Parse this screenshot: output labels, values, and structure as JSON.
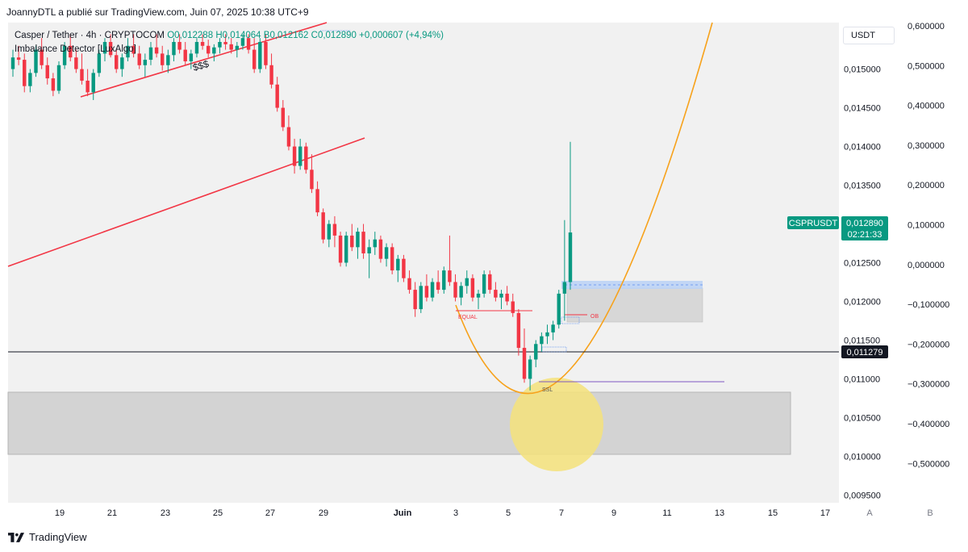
{
  "header": {
    "publisher_text": "JoannyDTL a publié sur TradingView.com, Juin 07, 2025 10:38 UTC+9"
  },
  "legend": {
    "symbol": "Casper / Tether · 4h · CRYPTOCOM",
    "open": "O0,012288",
    "high": "H0,014064",
    "low": "B0,012162",
    "close": "C0,012890",
    "change": "+0,000607 (+4,94%)",
    "indicator": "Imbalance Detector [LuxAlgo]"
  },
  "currency_button": "USDT",
  "footer": {
    "brand": "TradingView"
  },
  "colors": {
    "up": "#089981",
    "down": "#f23645",
    "trendline": "#f23645",
    "curve": "#f7a21b",
    "highlight_circle": "#f5e27a",
    "zone": "#c8c8c8",
    "ob_zone": "#d4d4d4",
    "ob_zone_top": "#bcd3f5",
    "ssl_line": "#7e57c2",
    "crosshair": "#131722"
  },
  "chart_data": {
    "type": "candlestick",
    "symbol": "CSPRUSDT",
    "timeframe": "4h",
    "x_axis": {
      "tick_labels": [
        "19",
        "21",
        "23",
        "25",
        "27",
        "29",
        "Juin",
        "3",
        "5",
        "7",
        "9",
        "11",
        "13",
        "15",
        "17"
      ],
      "pane_labels": [
        "A",
        "B"
      ]
    },
    "price_axis": {
      "ticks": [
        "0,015000",
        "0,014500",
        "0,014000",
        "0,013500",
        "0,013000",
        "0,012500",
        "0,012000",
        "0,011500",
        "0,011000",
        "0,010500",
        "0,010000",
        "0,009500"
      ],
      "range": [
        0.0094,
        0.0156
      ]
    },
    "secondary_axis": {
      "ticks": [
        "0,600000",
        "0,500000",
        "0,400000",
        "0,300000",
        "0,200000",
        "0,100000",
        "0,000000",
        "−0,100000",
        "−0,200000",
        "−0,300000",
        "−0,400000",
        "−0,500000"
      ]
    },
    "last_price": {
      "label": "CSPRUSDT",
      "value": "0,012890",
      "countdown": "02:21:33"
    },
    "crosshair_price": "0,011279",
    "annotations": [
      "$$$",
      "EQUAL",
      "OB",
      "SSL"
    ],
    "candles": [
      [
        0.015,
        0.01525,
        0.0149,
        0.01515
      ],
      [
        0.01515,
        0.0153,
        0.01505,
        0.01512
      ],
      [
        0.01512,
        0.0152,
        0.0147,
        0.01478
      ],
      [
        0.01478,
        0.015,
        0.0147,
        0.01495
      ],
      [
        0.01495,
        0.0153,
        0.0149,
        0.01525
      ],
      [
        0.01525,
        0.0154,
        0.015,
        0.01505
      ],
      [
        0.01505,
        0.01515,
        0.0148,
        0.01488
      ],
      [
        0.01488,
        0.01495,
        0.01465,
        0.01472
      ],
      [
        0.01472,
        0.0151,
        0.01468,
        0.01505
      ],
      [
        0.01505,
        0.01535,
        0.015,
        0.0153
      ],
      [
        0.0153,
        0.01545,
        0.0151,
        0.01515
      ],
      [
        0.01515,
        0.01525,
        0.01495,
        0.015
      ],
      [
        0.015,
        0.0152,
        0.0148,
        0.01485
      ],
      [
        0.01485,
        0.015,
        0.01465,
        0.0147
      ],
      [
        0.0147,
        0.015,
        0.0146,
        0.01495
      ],
      [
        0.01495,
        0.01525,
        0.0149,
        0.0152
      ],
      [
        0.0152,
        0.0154,
        0.0151,
        0.01535
      ],
      [
        0.01535,
        0.01545,
        0.01515,
        0.01518
      ],
      [
        0.01518,
        0.01525,
        0.01495,
        0.015
      ],
      [
        0.015,
        0.0152,
        0.0149,
        0.01515
      ],
      [
        0.01515,
        0.0154,
        0.0151,
        0.0153
      ],
      [
        0.0153,
        0.01545,
        0.01515,
        0.0152
      ],
      [
        0.0152,
        0.0153,
        0.015,
        0.01505
      ],
      [
        0.01505,
        0.0152,
        0.0149,
        0.01512
      ],
      [
        0.01512,
        0.01535,
        0.01505,
        0.01528
      ],
      [
        0.01528,
        0.01545,
        0.01515,
        0.0152
      ],
      [
        0.0152,
        0.0153,
        0.01498,
        0.01505
      ],
      [
        0.01505,
        0.01525,
        0.01495,
        0.01518
      ],
      [
        0.01518,
        0.0154,
        0.0151,
        0.01535
      ],
      [
        0.01535,
        0.01545,
        0.0152,
        0.01525
      ],
      [
        0.01525,
        0.01535,
        0.01505,
        0.0151
      ],
      [
        0.0151,
        0.01525,
        0.015,
        0.0152
      ],
      [
        0.0152,
        0.0154,
        0.01515,
        0.01535
      ],
      [
        0.01535,
        0.01545,
        0.01525,
        0.0153
      ],
      [
        0.0153,
        0.01538,
        0.01515,
        0.0152
      ],
      [
        0.0152,
        0.01532,
        0.0151,
        0.01528
      ],
      [
        0.01528,
        0.0154,
        0.0152,
        0.01535
      ],
      [
        0.01535,
        0.01545,
        0.01525,
        0.01532
      ],
      [
        0.01532,
        0.0154,
        0.0152,
        0.01525
      ],
      [
        0.01525,
        0.01535,
        0.01515,
        0.0153
      ],
      [
        0.0153,
        0.01545,
        0.01525,
        0.0154
      ],
      [
        0.0154,
        0.01545,
        0.0152,
        0.01525
      ],
      [
        0.01525,
        0.0154,
        0.01495,
        0.015
      ],
      [
        0.015,
        0.0154,
        0.01495,
        0.01535
      ],
      [
        0.01535,
        0.01545,
        0.015,
        0.01505
      ],
      [
        0.01505,
        0.0152,
        0.01475,
        0.0148
      ],
      [
        0.0148,
        0.0149,
        0.01445,
        0.0145
      ],
      [
        0.0145,
        0.0146,
        0.0142,
        0.01425
      ],
      [
        0.01425,
        0.0144,
        0.01395,
        0.014
      ],
      [
        0.014,
        0.0141,
        0.01365,
        0.01375
      ],
      [
        0.01375,
        0.0141,
        0.0137,
        0.014
      ],
      [
        0.014,
        0.01405,
        0.01365,
        0.0137
      ],
      [
        0.0137,
        0.0139,
        0.0134,
        0.01345
      ],
      [
        0.01345,
        0.01355,
        0.0131,
        0.01315
      ],
      [
        0.01315,
        0.0132,
        0.01275,
        0.0128
      ],
      [
        0.0128,
        0.01305,
        0.0127,
        0.013
      ],
      [
        0.013,
        0.0131,
        0.0127,
        0.01285
      ],
      [
        0.01285,
        0.0129,
        0.01245,
        0.0125
      ],
      [
        0.0125,
        0.0129,
        0.01245,
        0.01285
      ],
      [
        0.01285,
        0.013,
        0.01265,
        0.0127
      ],
      [
        0.0127,
        0.01295,
        0.01255,
        0.0129
      ],
      [
        0.0129,
        0.013,
        0.01255,
        0.01262
      ],
      [
        0.01262,
        0.0128,
        0.0123,
        0.0127
      ],
      [
        0.0127,
        0.0129,
        0.0126,
        0.0128
      ],
      [
        0.0128,
        0.01285,
        0.0125,
        0.01255
      ],
      [
        0.01255,
        0.01275,
        0.01245,
        0.0127
      ],
      [
        0.0127,
        0.01275,
        0.01235,
        0.0124
      ],
      [
        0.0124,
        0.0126,
        0.01225,
        0.01255
      ],
      [
        0.01255,
        0.0126,
        0.01225,
        0.0123
      ],
      [
        0.0123,
        0.0124,
        0.0121,
        0.01215
      ],
      [
        0.01215,
        0.01225,
        0.0118,
        0.0119
      ],
      [
        0.0119,
        0.01225,
        0.01185,
        0.0122
      ],
      [
        0.0122,
        0.01235,
        0.012,
        0.01205
      ],
      [
        0.01205,
        0.0123,
        0.012,
        0.01225
      ],
      [
        0.01225,
        0.0124,
        0.0121,
        0.01215
      ],
      [
        0.01215,
        0.01245,
        0.0121,
        0.0124
      ],
      [
        0.0124,
        0.01285,
        0.0122,
        0.01225
      ],
      [
        0.01225,
        0.01235,
        0.012,
        0.01205
      ],
      [
        0.01205,
        0.01225,
        0.01195,
        0.0122
      ],
      [
        0.0122,
        0.0124,
        0.0121,
        0.0123
      ],
      [
        0.0123,
        0.01235,
        0.012,
        0.01205
      ],
      [
        0.01205,
        0.01215,
        0.0119,
        0.0121
      ],
      [
        0.0121,
        0.0124,
        0.01205,
        0.01235
      ],
      [
        0.01235,
        0.0124,
        0.0121,
        0.01215
      ],
      [
        0.01215,
        0.01225,
        0.012,
        0.01205
      ],
      [
        0.01205,
        0.01215,
        0.0119,
        0.0121
      ],
      [
        0.0121,
        0.0122,
        0.01195,
        0.012
      ],
      [
        0.012,
        0.0121,
        0.0118,
        0.01185
      ],
      [
        0.01185,
        0.0119,
        0.0113,
        0.0114
      ],
      [
        0.0114,
        0.01165,
        0.01095,
        0.011
      ],
      [
        0.011,
        0.0113,
        0.01085,
        0.01125
      ],
      [
        0.01125,
        0.0115,
        0.01115,
        0.01145
      ],
      [
        0.01145,
        0.0116,
        0.01135,
        0.01155
      ],
      [
        0.01155,
        0.0117,
        0.01145,
        0.0116
      ],
      [
        0.0116,
        0.01175,
        0.0115,
        0.0117
      ],
      [
        0.0117,
        0.01215,
        0.01165,
        0.0121
      ],
      [
        0.0121,
        0.01305,
        0.01175,
        0.01225
      ],
      [
        0.01225,
        0.01406,
        0.01215,
        0.01289
      ]
    ]
  }
}
